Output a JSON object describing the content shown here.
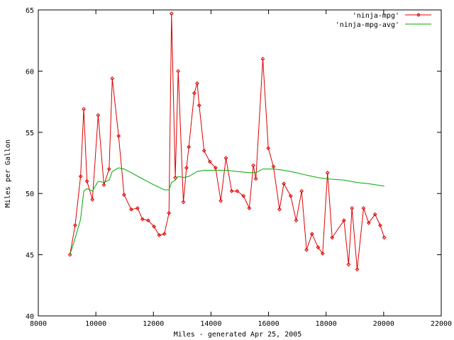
{
  "chart_data": {
    "type": "line",
    "title": "",
    "xlabel": "Miles - generated Apr 25, 2005",
    "ylabel": "Miles per Gallon",
    "xlim": [
      8000,
      22000
    ],
    "ylim": [
      40,
      65
    ],
    "x_ticks": [
      8000,
      10000,
      12000,
      14000,
      16000,
      18000,
      20000,
      22000
    ],
    "y_ticks": [
      40,
      45,
      50,
      55,
      60,
      65
    ],
    "grid": false,
    "legend_position": "top-right",
    "series": [
      {
        "name": "'ninja-mpg'",
        "color": "#dd0000",
        "marker": "diamond",
        "points": [
          [
            9100,
            45.0
          ],
          [
            9280,
            47.4
          ],
          [
            9470,
            51.4
          ],
          [
            9580,
            56.9
          ],
          [
            9690,
            51.0
          ],
          [
            9880,
            49.5
          ],
          [
            10080,
            56.4
          ],
          [
            10280,
            50.7
          ],
          [
            10460,
            52.0
          ],
          [
            10570,
            59.4
          ],
          [
            10790,
            54.7
          ],
          [
            10980,
            49.9
          ],
          [
            11230,
            48.7
          ],
          [
            11450,
            48.8
          ],
          [
            11620,
            47.9
          ],
          [
            11820,
            47.8
          ],
          [
            12020,
            47.3
          ],
          [
            12200,
            46.6
          ],
          [
            12380,
            46.7
          ],
          [
            12540,
            48.4
          ],
          [
            12630,
            64.7
          ],
          [
            12760,
            51.3
          ],
          [
            12860,
            60.0
          ],
          [
            13040,
            49.3
          ],
          [
            13150,
            52.1
          ],
          [
            13230,
            53.8
          ],
          [
            13420,
            58.2
          ],
          [
            13520,
            59.0
          ],
          [
            13590,
            57.2
          ],
          [
            13760,
            53.5
          ],
          [
            13960,
            52.6
          ],
          [
            14160,
            52.1
          ],
          [
            14340,
            49.4
          ],
          [
            14520,
            52.9
          ],
          [
            14720,
            50.2
          ],
          [
            14910,
            50.2
          ],
          [
            15130,
            49.8
          ],
          [
            15330,
            48.8
          ],
          [
            15470,
            52.3
          ],
          [
            15560,
            51.2
          ],
          [
            15800,
            61.0
          ],
          [
            15990,
            53.7
          ],
          [
            16170,
            52.2
          ],
          [
            16380,
            48.7
          ],
          [
            16530,
            50.8
          ],
          [
            16770,
            49.8
          ],
          [
            16960,
            47.8
          ],
          [
            17150,
            50.2
          ],
          [
            17320,
            45.4
          ],
          [
            17510,
            46.7
          ],
          [
            17720,
            45.6
          ],
          [
            17880,
            45.1
          ],
          [
            18050,
            51.7
          ],
          [
            18210,
            46.4
          ],
          [
            18620,
            47.8
          ],
          [
            18780,
            44.2
          ],
          [
            18900,
            48.8
          ],
          [
            19080,
            43.8
          ],
          [
            19300,
            48.8
          ],
          [
            19480,
            47.6
          ],
          [
            19700,
            48.3
          ],
          [
            19880,
            47.4
          ],
          [
            20020,
            46.4
          ]
        ]
      },
      {
        "name": "'ninja-mpg-avg'",
        "color": "#00aa00",
        "marker": "none",
        "points": [
          [
            9100,
            45.0
          ],
          [
            9300,
            46.5
          ],
          [
            9470,
            47.9
          ],
          [
            9580,
            50.2
          ],
          [
            9690,
            50.4
          ],
          [
            9880,
            50.2
          ],
          [
            10080,
            51.0
          ],
          [
            10280,
            50.9
          ],
          [
            10460,
            51.1
          ],
          [
            10570,
            51.8
          ],
          [
            10790,
            52.1
          ],
          [
            10980,
            52.0
          ],
          [
            11230,
            51.7
          ],
          [
            11620,
            51.2
          ],
          [
            12020,
            50.7
          ],
          [
            12380,
            50.3
          ],
          [
            12540,
            50.3
          ],
          [
            12630,
            50.9
          ],
          [
            12760,
            51.1
          ],
          [
            12860,
            51.4
          ],
          [
            13040,
            51.3
          ],
          [
            13230,
            51.4
          ],
          [
            13520,
            51.8
          ],
          [
            13760,
            51.9
          ],
          [
            14160,
            51.9
          ],
          [
            14520,
            51.9
          ],
          [
            14910,
            51.8
          ],
          [
            15330,
            51.7
          ],
          [
            15560,
            51.7
          ],
          [
            15800,
            52.0
          ],
          [
            16170,
            52.0
          ],
          [
            16530,
            51.9
          ],
          [
            16960,
            51.7
          ],
          [
            17320,
            51.5
          ],
          [
            17720,
            51.3
          ],
          [
            18050,
            51.2
          ],
          [
            18620,
            51.1
          ],
          [
            19080,
            50.9
          ],
          [
            19480,
            50.8
          ],
          [
            20020,
            50.6
          ]
        ]
      }
    ]
  }
}
